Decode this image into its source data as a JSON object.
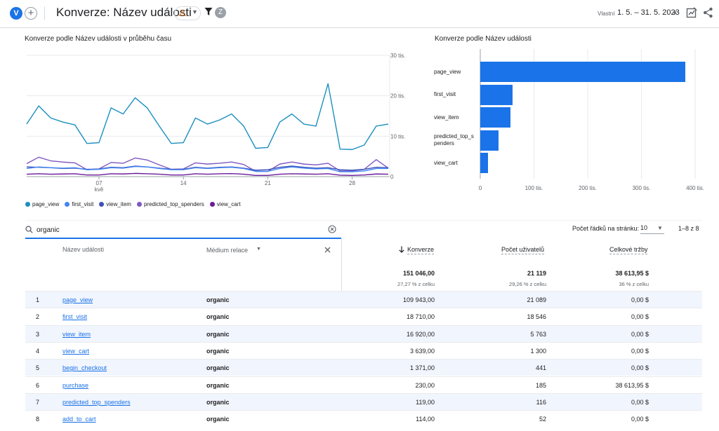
{
  "header": {
    "property_chip": "V",
    "add_label": "+",
    "title": "Konverze: Název události",
    "compare_chip": "Z",
    "date_label": "Vlastní",
    "date_range": "1. 5. – 31. 5. 2023"
  },
  "line_chart_card": {
    "title": "Konverze podle Název události v průběhu času"
  },
  "bar_chart_card": {
    "title": "Konverze podle Název události"
  },
  "chart_data": [
    {
      "type": "line",
      "title": "Konverze podle Název události v průběhu času",
      "x": [
        1,
        2,
        3,
        4,
        5,
        6,
        7,
        8,
        9,
        10,
        11,
        12,
        13,
        14,
        15,
        16,
        17,
        18,
        19,
        20,
        21,
        22,
        23,
        24,
        25,
        26,
        27,
        28,
        29,
        30,
        31
      ],
      "x_tick_labels": [
        "07\nkvě",
        "14",
        "21",
        "28"
      ],
      "x_tick_values": [
        7,
        14,
        21,
        28
      ],
      "y_tick_labels": [
        "0",
        "10 tis.",
        "20 tis.",
        "30 tis."
      ],
      "ylim": [
        0,
        30000
      ],
      "grid": true,
      "legend_position": "bottom",
      "series": [
        {
          "name": "page_view",
          "color": "#1b8fc0",
          "values": [
            13000,
            17500,
            14500,
            13500,
            12800,
            8200,
            8400,
            17000,
            15500,
            19500,
            17000,
            12500,
            8200,
            8400,
            14500,
            13000,
            14000,
            15500,
            12500,
            7000,
            7200,
            13500,
            15500,
            13000,
            12500,
            23000,
            6800,
            6700,
            7800,
            12500,
            13000
          ]
        },
        {
          "name": "first_visit",
          "color": "#4285f4",
          "values": [
            2000,
            2400,
            2200,
            2100,
            2200,
            1700,
            1800,
            2200,
            2100,
            2500,
            2400,
            2000,
            1700,
            1700,
            2200,
            2000,
            2200,
            2300,
            2000,
            1300,
            1300,
            2000,
            2400,
            2100,
            1900,
            2000,
            1200,
            1200,
            1400,
            2000,
            2000
          ]
        },
        {
          "name": "view_item",
          "color": "#3f51b5",
          "values": [
            2400,
            2300,
            2200,
            2000,
            2100,
            1800,
            1900,
            2300,
            2200,
            2600,
            2400,
            2100,
            1800,
            1800,
            2300,
            2100,
            2300,
            2400,
            2100,
            1600,
            1700,
            2300,
            2600,
            2300,
            2100,
            2200,
            1700,
            1600,
            1800,
            2300,
            2200
          ]
        },
        {
          "name": "predicted_top_spenders",
          "color": "#7e57c2",
          "values": [
            3200,
            4800,
            3900,
            3600,
            3400,
            1700,
            1900,
            3500,
            3300,
            4600,
            4100,
            2900,
            1800,
            1900,
            3400,
            3100,
            3300,
            3600,
            3000,
            1300,
            1300,
            3100,
            3600,
            3100,
            2900,
            3300,
            1400,
            1400,
            1800,
            4200,
            2100
          ]
        },
        {
          "name": "view_cart",
          "color": "#6a1b9a",
          "values": [
            600,
            700,
            600,
            650,
            700,
            400,
            400,
            700,
            650,
            800,
            700,
            600,
            400,
            400,
            700,
            600,
            700,
            750,
            600,
            300,
            300,
            600,
            700,
            650,
            600,
            700,
            350,
            300,
            400,
            650,
            600
          ]
        }
      ]
    },
    {
      "type": "bar",
      "orientation": "horizontal",
      "title": "Konverze podle Název události",
      "categories": [
        "page_view",
        "first_visit",
        "view_item",
        "predicted_top_spenders",
        "view_cart"
      ],
      "category_labels": [
        "page_view",
        "first_visit",
        "view_item",
        "predicted_top_s\npenders",
        "view_cart"
      ],
      "values": [
        382000,
        60000,
        56000,
        34000,
        14000
      ],
      "x_tick_labels": [
        "0",
        "100 tis.",
        "200 tis.",
        "300 tis.",
        "400 tis."
      ],
      "xlim": [
        0,
        400000
      ],
      "grid": true,
      "color": "#1a73e8"
    }
  ],
  "search": {
    "value": "organic"
  },
  "pager": {
    "rows_label": "Počet řádků na stránku:",
    "rows_value": "10",
    "info": "1–8 z 8"
  },
  "table": {
    "headers": {
      "event_name": "Název události",
      "medium": "Médium relace",
      "conversions": "Konverze",
      "users": "Počet uživatelů",
      "revenue": "Celkové tržby"
    },
    "totals": {
      "conversions": "151 046,00",
      "conversions_pct": "27,27 % z celku",
      "users": "21 119",
      "users_pct": "29,26 % z celku",
      "revenue": "38 613,95 $",
      "revenue_pct": "36 % z celku"
    },
    "rows": [
      {
        "idx": "1",
        "name": "page_view",
        "medium": "organic",
        "conversions": "109 943,00",
        "users": "21 089",
        "revenue": "0,00 $"
      },
      {
        "idx": "2",
        "name": "first_visit",
        "medium": "organic",
        "conversions": "18 710,00",
        "users": "18 546",
        "revenue": "0,00 $"
      },
      {
        "idx": "3",
        "name": "view_item",
        "medium": "organic",
        "conversions": "16 920,00",
        "users": "5 763",
        "revenue": "0,00 $"
      },
      {
        "idx": "4",
        "name": "view_cart",
        "medium": "organic",
        "conversions": "3 639,00",
        "users": "1 300",
        "revenue": "0,00 $"
      },
      {
        "idx": "5",
        "name": "begin_checkout",
        "medium": "organic",
        "conversions": "1 371,00",
        "users": "441",
        "revenue": "0,00 $"
      },
      {
        "idx": "6",
        "name": "purchase",
        "medium": "organic",
        "conversions": "230,00",
        "users": "185",
        "revenue": "38 613,95 $"
      },
      {
        "idx": "7",
        "name": "predicted_top_spenders",
        "medium": "organic",
        "conversions": "119,00",
        "users": "116",
        "revenue": "0,00 $"
      },
      {
        "idx": "8",
        "name": "add_to_cart",
        "medium": "organic",
        "conversions": "114,00",
        "users": "52",
        "revenue": "0,00 $"
      }
    ]
  }
}
